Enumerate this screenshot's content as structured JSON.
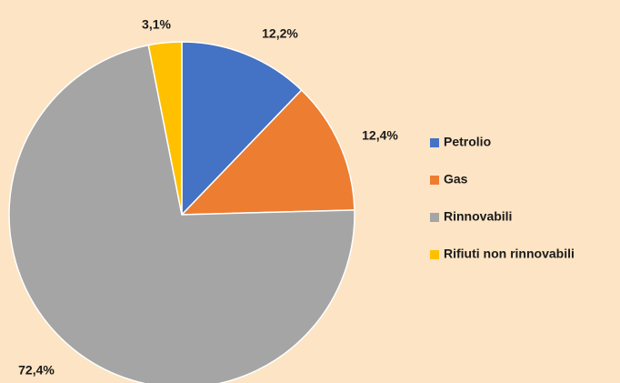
{
  "chart_data": {
    "type": "pie",
    "categories": [
      "Petrolio",
      "Gas",
      "Rinnovabili",
      "Rifiuti non rinnovabili"
    ],
    "values": [
      12.2,
      12.4,
      72.4,
      3.1
    ],
    "value_labels": [
      "12,2%",
      "12,4%",
      "72,4%",
      "3,1%"
    ],
    "colors": [
      "#4472c4",
      "#ed7d31",
      "#a5a5a5",
      "#ffc000"
    ],
    "legend": "right"
  }
}
